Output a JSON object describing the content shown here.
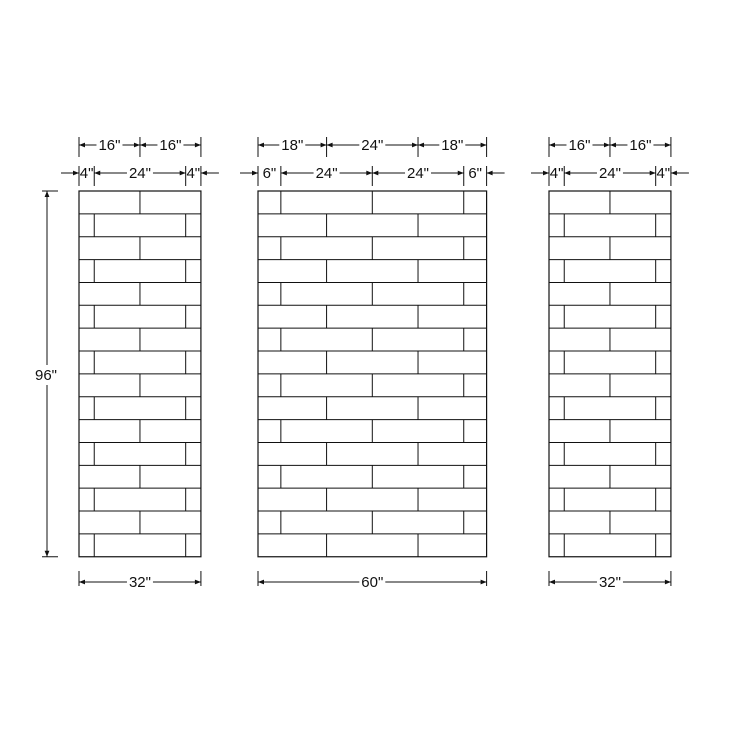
{
  "units": "inches",
  "height_label": "96\"",
  "height_value": 96,
  "panels": [
    {
      "name": "left",
      "width": 32,
      "width_label": "32\"",
      "row_count": 16,
      "row_pattern_a": [
        16,
        16
      ],
      "row_pattern_b": [
        4,
        24,
        4
      ],
      "dims_top": [
        {
          "value": 16,
          "label": "16\""
        },
        {
          "value": 16,
          "label": "16\""
        }
      ],
      "dims_second": [
        {
          "value": 4,
          "label": "4\""
        },
        {
          "value": 24,
          "label": "24\""
        },
        {
          "value": 4,
          "label": "4\""
        }
      ]
    },
    {
      "name": "middle",
      "width": 60,
      "width_label": "60\"",
      "row_count": 16,
      "row_pattern_a": [
        6,
        24,
        24,
        6
      ],
      "row_pattern_b": [
        18,
        24,
        18
      ],
      "dims_top": [
        {
          "value": 18,
          "label": "18\""
        },
        {
          "value": 24,
          "label": "24\""
        },
        {
          "value": 18,
          "label": "18\""
        }
      ],
      "dims_second": [
        {
          "value": 6,
          "label": "6\""
        },
        {
          "value": 24,
          "label": "24\""
        },
        {
          "value": 24,
          "label": "24\""
        },
        {
          "value": 6,
          "label": "6\""
        }
      ]
    },
    {
      "name": "right",
      "width": 32,
      "width_label": "32\"",
      "row_count": 16,
      "row_pattern_a": [
        16,
        16
      ],
      "row_pattern_b": [
        4,
        24,
        4
      ],
      "dims_top": [
        {
          "value": 16,
          "label": "16\""
        },
        {
          "value": 16,
          "label": "16\""
        }
      ],
      "dims_second": [
        {
          "value": 4,
          "label": "4\""
        },
        {
          "value": 24,
          "label": "24\""
        },
        {
          "value": 4,
          "label": "4\""
        }
      ]
    }
  ],
  "colors": {
    "line": "#111111",
    "background": "#ffffff"
  }
}
